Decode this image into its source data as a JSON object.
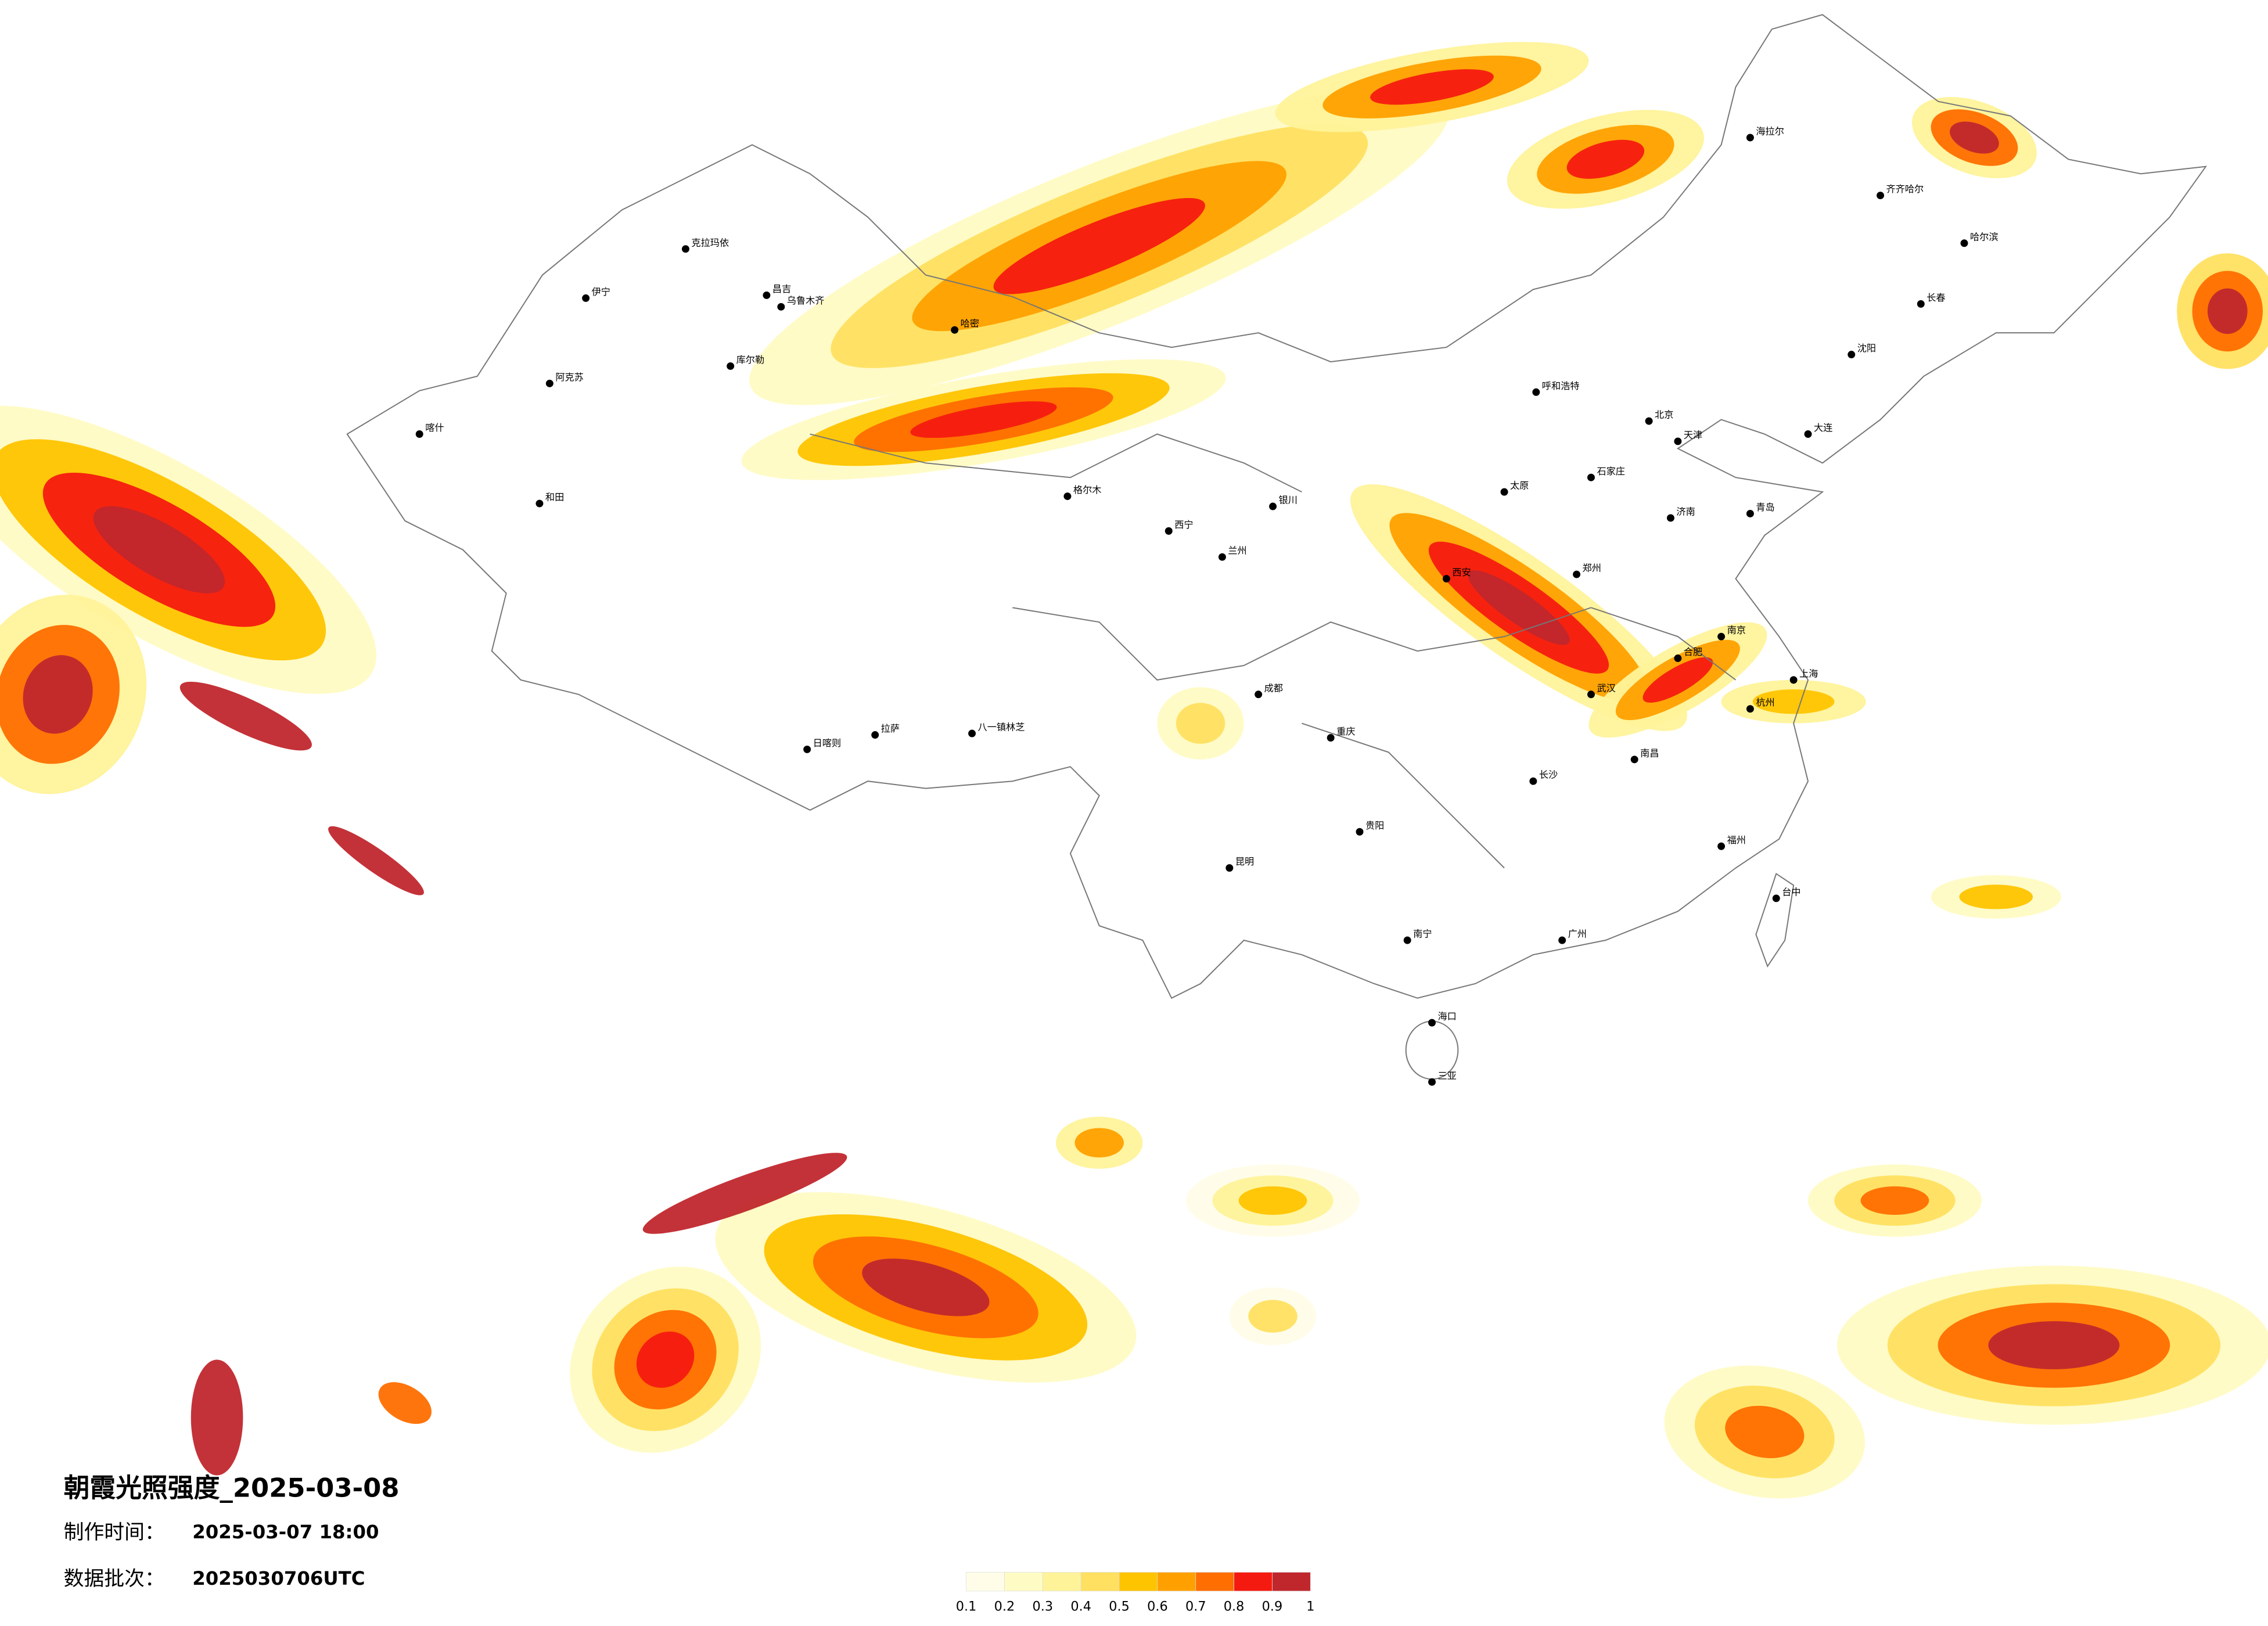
{
  "header": {
    "title": "朝霞光照强度_2025-03-08",
    "made_label": "制作时间：",
    "made_value": "2025-03-07 18:00",
    "batch_label": "数据批次：",
    "batch_value": "2025030706UTC"
  },
  "legend": {
    "ticks": [
      0.1,
      0.2,
      0.3,
      0.4,
      0.5,
      0.6,
      0.7,
      0.8,
      0.9,
      1
    ],
    "colors": [
      "#fffde8",
      "#fffbc4",
      "#fff39a",
      "#ffe060",
      "#ffc400",
      "#ffa000",
      "#ff6e00",
      "#f51a10",
      "#c0272d"
    ]
  },
  "cities": [
    "克拉玛依",
    "伊宁",
    "昌吉",
    "乌鲁木齐",
    "库尔勒",
    "阿克苏",
    "和田",
    "喀什",
    "哈密",
    "格尔木",
    "日喀则",
    "拉萨",
    "八一镇林芝",
    "西宁",
    "兰州",
    "银川",
    "呼和浩特",
    "北京",
    "天津",
    "石家庄",
    "太原",
    "济南",
    "郑州",
    "西安",
    "武汉",
    "合肥",
    "南京",
    "上海",
    "杭州",
    "长沙",
    "南昌",
    "福州",
    "广州",
    "南宁",
    "海口",
    "三亚",
    "贵阳",
    "昆明",
    "成都",
    "重庆",
    "沈阳",
    "长春",
    "哈尔滨",
    "齐齐哈尔",
    "海拉尔",
    "台中",
    "大连",
    "青岛"
  ]
}
